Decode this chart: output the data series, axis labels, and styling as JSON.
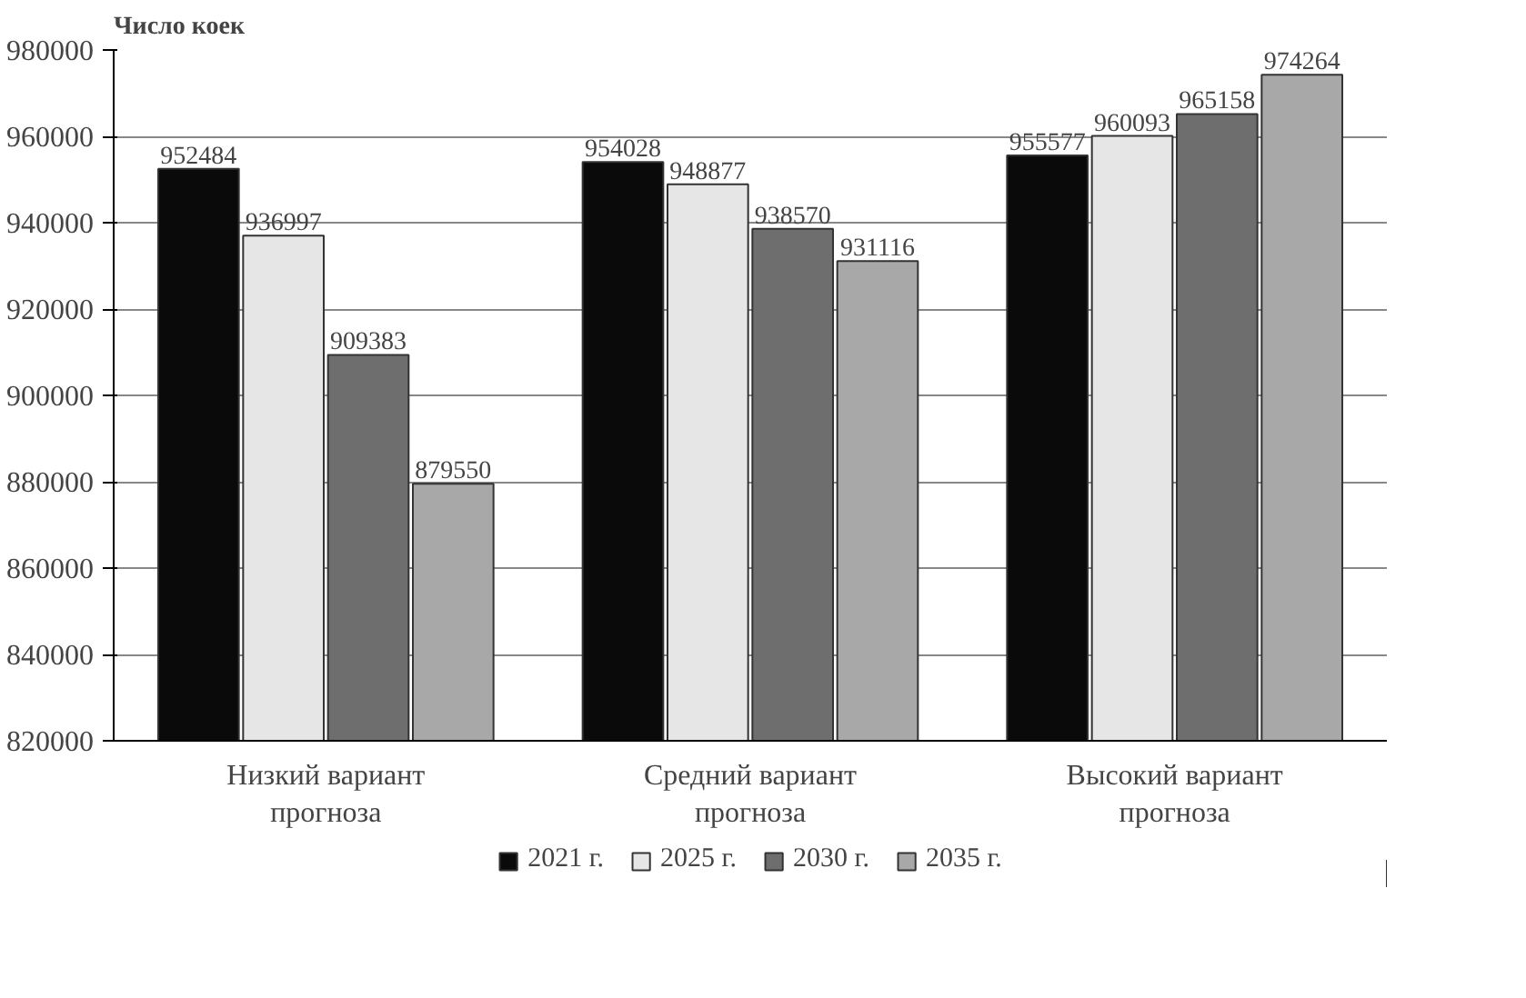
{
  "chart_data": {
    "type": "bar",
    "ylabel": "Число коек",
    "categories": [
      "Низкий вариант прогноза",
      "Средний вариант прогноза",
      "Высокий вариант прогноза"
    ],
    "series": [
      {
        "name": "2021 г.",
        "color": "#0a0a0a",
        "values": [
          952484,
          954028,
          955577
        ]
      },
      {
        "name": "2025 г.",
        "color": "#e6e6e6",
        "values": [
          936997,
          948877,
          960093
        ]
      },
      {
        "name": "2030 г.",
        "color": "#6e6e6e",
        "values": [
          909383,
          938570,
          965158
        ]
      },
      {
        "name": "2035 г.",
        "color": "#a8a8a8",
        "values": [
          879550,
          931116,
          974264
        ]
      }
    ],
    "ylim": [
      820000,
      980000
    ],
    "yticks": [
      820000,
      840000,
      860000,
      880000,
      900000,
      920000,
      940000,
      960000,
      980000
    ],
    "grid": "y",
    "legend": "bottom",
    "data_labels": true
  }
}
